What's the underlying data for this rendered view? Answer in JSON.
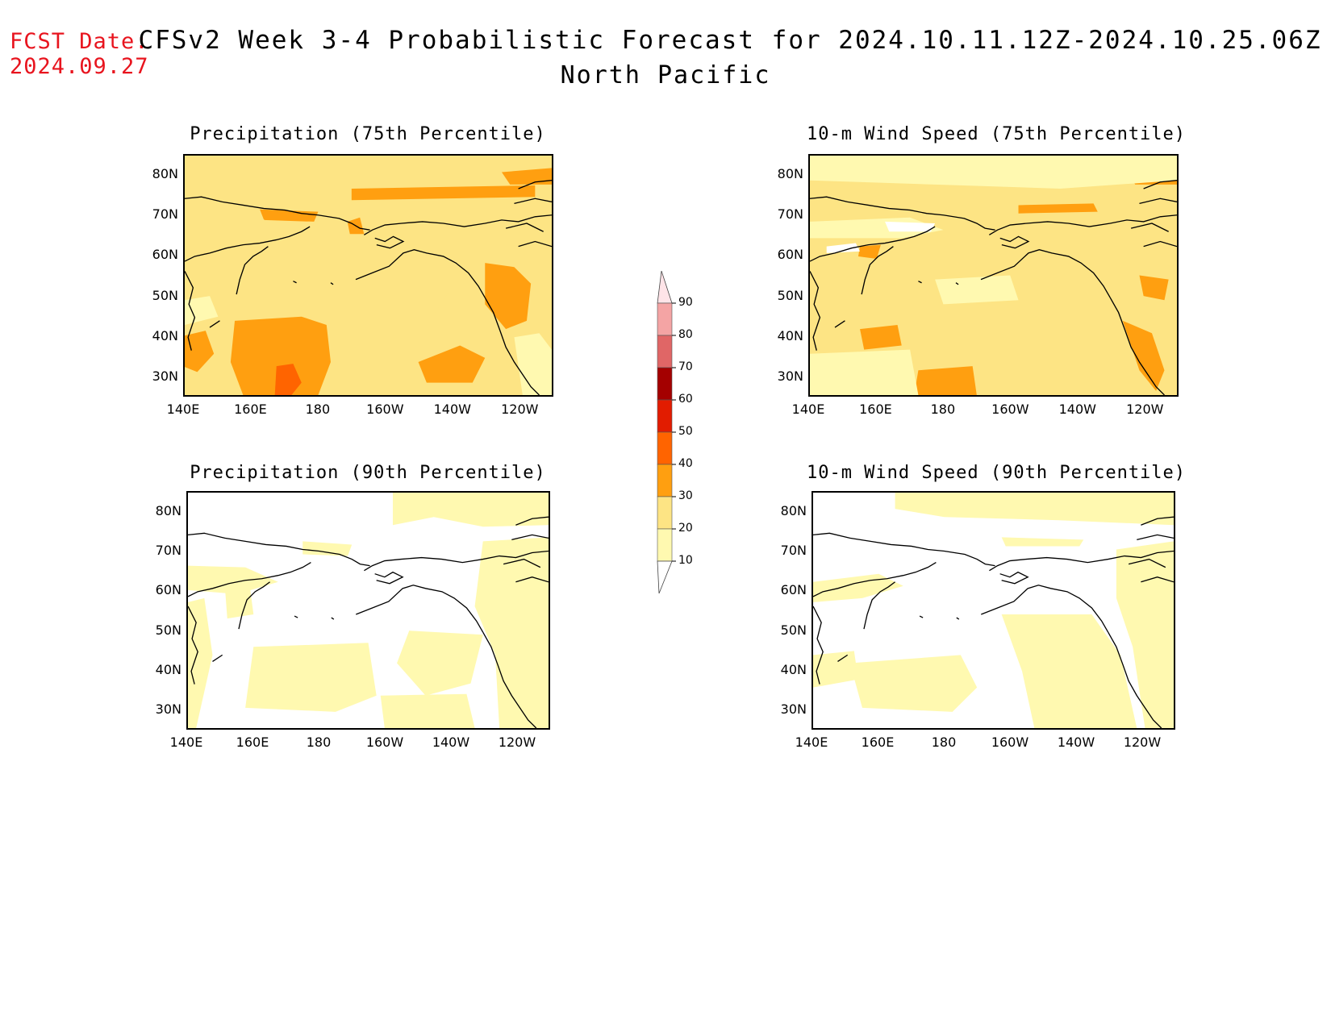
{
  "header": {
    "fcst_label": "FCST Date:",
    "fcst_date": "2024.09.27",
    "title": "CFSv2 Week 3-4 Probabilistic Forecast for 2024.10.11.12Z-2024.10.25.06Z",
    "subtitle": "North Pacific"
  },
  "panels": [
    {
      "id": "p75",
      "title": "Precipitation (75th Percentile)"
    },
    {
      "id": "w75",
      "title": "10-m Wind Speed (75th Percentile)"
    },
    {
      "id": "p90",
      "title": "Precipitation (90th Percentile)"
    },
    {
      "id": "w90",
      "title": "10-m Wind Speed (90th Percentile)"
    }
  ],
  "axes": {
    "lon_labels": [
      "140E",
      "160E",
      "180",
      "160W",
      "140W",
      "120W"
    ],
    "lat_labels": [
      "80N",
      "70N",
      "60N",
      "50N",
      "40N",
      "30N"
    ]
  },
  "colorbar": {
    "levels": [
      "10",
      "20",
      "30",
      "40",
      "50",
      "60",
      "70",
      "80",
      "90"
    ],
    "colors": [
      "#fff9b0",
      "#fde484",
      "#ff9f10",
      "#ff6400",
      "#e21c00",
      "#a40000",
      "#e06666",
      "#f4a4a4",
      "#ffe4e8"
    ]
  }
}
